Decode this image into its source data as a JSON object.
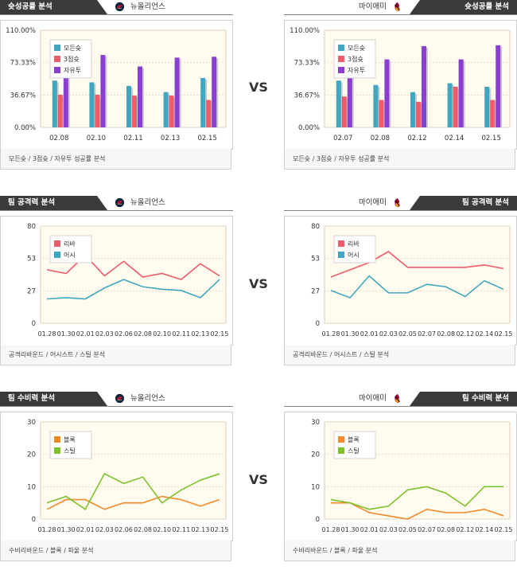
{
  "sections": [
    {
      "id": "shooting",
      "left_title": "슛성공률 분석",
      "right_title": "슛성공률 분석",
      "footer": "모든슛 / 3점슛 / 자유투 성공률 분석",
      "vs": "VS"
    },
    {
      "id": "attack",
      "left_title": "팀 공격력 분석",
      "right_title": "팀 공격력 분석",
      "footer": "공격리바운드 / 어시스트 / 스틸 분석",
      "vs": "VS"
    },
    {
      "id": "defense",
      "left_title": "팀 수비력 분석",
      "right_title": "팀 수비력 분석",
      "footer": "수비리바운드 / 블록 / 파울 분석",
      "vs": "VS"
    }
  ],
  "teams": {
    "left": "뉴올리언스",
    "right": "마이애미"
  },
  "colors": {
    "teal": "#3fa7bf",
    "red": "#ef5b6b",
    "purple": "#8a3fd0",
    "orange": "#f4892a",
    "green": "#7cc22b",
    "plot_bg": "#fffbef",
    "grid": "#e7dcc4"
  },
  "chart_data": [
    {
      "name": "left-shooting",
      "type": "bar",
      "categories": [
        "02.08",
        "02.10",
        "02.11",
        "02.13",
        "02.15"
      ],
      "yticks": [
        "0.00%",
        "36.67%",
        "73.33%",
        "110.00%"
      ],
      "ylim": [
        0,
        110
      ],
      "series": [
        {
          "name": "모든슛",
          "color": "#3fa7bf",
          "values": [
            53,
            51,
            47,
            40,
            56
          ]
        },
        {
          "name": "3점슛",
          "color": "#ef5b6b",
          "values": [
            37,
            37,
            36,
            36,
            31
          ]
        },
        {
          "name": "자유투",
          "color": "#8a3fd0",
          "values": [
            88,
            82,
            69,
            79,
            80
          ]
        }
      ]
    },
    {
      "name": "right-shooting",
      "type": "bar",
      "categories": [
        "02.07",
        "02.08",
        "02.12",
        "02.14",
        "02.15"
      ],
      "yticks": [
        "0.00%",
        "36.67%",
        "73.33%",
        "110.00%"
      ],
      "ylim": [
        0,
        110
      ],
      "series": [
        {
          "name": "모든슛",
          "color": "#3fa7bf",
          "values": [
            53,
            48,
            40,
            50,
            46
          ]
        },
        {
          "name": "3점슛",
          "color": "#ef5b6b",
          "values": [
            35,
            31,
            29,
            46,
            31
          ]
        },
        {
          "name": "자유투",
          "color": "#8a3fd0",
          "values": [
            89,
            77,
            92,
            77,
            93
          ]
        }
      ]
    },
    {
      "name": "left-attack",
      "type": "line",
      "categories": [
        "01.28",
        "01.30",
        "02.01",
        "02.03",
        "02.06",
        "02.08",
        "02.10",
        "02.11",
        "02.13",
        "02.15"
      ],
      "yticks": [
        "0",
        "27",
        "53",
        "80"
      ],
      "ylim": [
        0,
        80
      ],
      "series": [
        {
          "name": "리바",
          "color": "#ef5b6b",
          "values": [
            44,
            41,
            56,
            39,
            51,
            38,
            41,
            36,
            49,
            39
          ]
        },
        {
          "name": "어시",
          "color": "#3fa7bf",
          "values": [
            20,
            21,
            20,
            29,
            36,
            30,
            28,
            27,
            21,
            36
          ]
        }
      ]
    },
    {
      "name": "right-attack",
      "type": "line",
      "categories": [
        "01.28",
        "01.30",
        "02.01",
        "02.03",
        "02.05",
        "02.07",
        "02.08",
        "02.12",
        "02.14",
        "02.15"
      ],
      "yticks": [
        "0",
        "27",
        "53",
        "80"
      ],
      "ylim": [
        0,
        80
      ],
      "series": [
        {
          "name": "리바",
          "color": "#ef5b6b",
          "values": [
            38,
            44,
            50,
            59,
            46,
            46,
            46,
            46,
            48,
            45
          ]
        },
        {
          "name": "어시",
          "color": "#3fa7bf",
          "values": [
            27,
            21,
            39,
            25,
            25,
            32,
            30,
            22,
            35,
            28
          ]
        }
      ]
    },
    {
      "name": "left-defense",
      "type": "line",
      "categories": [
        "01.28",
        "01.30",
        "02.01",
        "02.03",
        "02.06",
        "02.08",
        "02.10",
        "02.11",
        "02.13",
        "02.15"
      ],
      "yticks": [
        "0",
        "10",
        "20",
        "30"
      ],
      "ylim": [
        0,
        30
      ],
      "series": [
        {
          "name": "블록",
          "color": "#f4892a",
          "values": [
            3,
            6,
            6,
            3,
            5,
            5,
            7,
            6,
            4,
            6
          ]
        },
        {
          "name": "스틸",
          "color": "#7cc22b",
          "values": [
            5,
            7,
            3,
            14,
            11,
            13,
            5,
            9,
            12,
            14
          ]
        }
      ]
    },
    {
      "name": "right-defense",
      "type": "line",
      "categories": [
        "01.28",
        "01.30",
        "02.01",
        "02.03",
        "02.05",
        "02.07",
        "02.08",
        "02.12",
        "02.14",
        "02.15"
      ],
      "yticks": [
        "0",
        "10",
        "20",
        "30"
      ],
      "ylim": [
        0,
        30
      ],
      "series": [
        {
          "name": "블록",
          "color": "#f4892a",
          "values": [
            5,
            5,
            2,
            1,
            0,
            3,
            2,
            2,
            3,
            1
          ]
        },
        {
          "name": "스틸",
          "color": "#7cc22b",
          "values": [
            6,
            5,
            3,
            4,
            9,
            10,
            8,
            4,
            10,
            10
          ]
        }
      ]
    }
  ]
}
